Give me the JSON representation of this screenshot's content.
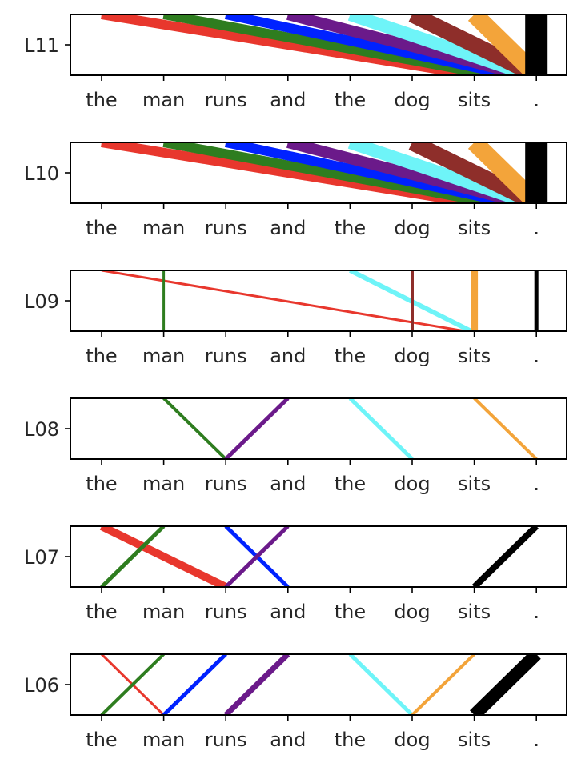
{
  "chart_data": [
    {
      "type": "line",
      "title": "L11",
      "categories": [
        "the",
        "man",
        "runs",
        "and",
        "the",
        "dog",
        "sits",
        "."
      ],
      "links": [
        {
          "from": 0,
          "to": 6.0,
          "w": 12,
          "color": "#e8372d"
        },
        {
          "from": 1,
          "to": 6.3,
          "w": 12,
          "color": "#2e7d1f"
        },
        {
          "from": 2,
          "to": 6.6,
          "w": 12,
          "color": "#0022ff"
        },
        {
          "from": 3,
          "to": 6.8,
          "w": 14,
          "color": "#6b1a8a"
        },
        {
          "from": 4,
          "to": 6.9,
          "w": 16,
          "color": "#6ef4f8"
        },
        {
          "from": 5,
          "to": 7.0,
          "w": 20,
          "color": "#8e2e2a"
        },
        {
          "from": 6,
          "to": 7.0,
          "w": 22,
          "color": "#f3a43a"
        },
        {
          "from": 7,
          "to": 7.0,
          "w": 28,
          "color": "#000000"
        }
      ]
    },
    {
      "type": "line",
      "title": "L10",
      "categories": [
        "the",
        "man",
        "runs",
        "and",
        "the",
        "dog",
        "sits",
        "."
      ],
      "links": [
        {
          "from": 0,
          "to": 6.0,
          "w": 12,
          "color": "#e8372d"
        },
        {
          "from": 1,
          "to": 6.3,
          "w": 12,
          "color": "#2e7d1f"
        },
        {
          "from": 2,
          "to": 6.6,
          "w": 12,
          "color": "#0022ff"
        },
        {
          "from": 3,
          "to": 6.8,
          "w": 14,
          "color": "#6b1a8a"
        },
        {
          "from": 4,
          "to": 6.9,
          "w": 16,
          "color": "#6ef4f8"
        },
        {
          "from": 5,
          "to": 7.0,
          "w": 20,
          "color": "#8e2e2a"
        },
        {
          "from": 6,
          "to": 7.0,
          "w": 22,
          "color": "#f3a43a"
        },
        {
          "from": 7,
          "to": 7.0,
          "w": 28,
          "color": "#000000"
        }
      ]
    },
    {
      "type": "line",
      "title": "L09",
      "categories": [
        "the",
        "man",
        "runs",
        "and",
        "the",
        "dog",
        "sits",
        "."
      ],
      "links": [
        {
          "from": 0,
          "to": 5.85,
          "w": 3,
          "color": "#e8372d"
        },
        {
          "from": 1,
          "to": 1,
          "w": 3,
          "color": "#2e7d1f"
        },
        {
          "from": 4,
          "to": 5.95,
          "w": 6,
          "color": "#6ef4f8"
        },
        {
          "from": 5,
          "to": 5,
          "w": 4,
          "color": "#8e2e2a"
        },
        {
          "from": 6,
          "to": 6,
          "w": 9,
          "color": "#f3a43a"
        },
        {
          "from": 7,
          "to": 7,
          "w": 5,
          "color": "#000000"
        }
      ]
    },
    {
      "type": "line",
      "title": "L08",
      "categories": [
        "the",
        "man",
        "runs",
        "and",
        "the",
        "dog",
        "sits",
        "."
      ],
      "links": [
        {
          "from": 1,
          "to": 2,
          "w": 4,
          "color": "#2e7d1f"
        },
        {
          "from": 3,
          "to": 2,
          "w": 5,
          "color": "#6b1a8a"
        },
        {
          "from": 4,
          "to": 5,
          "w": 5,
          "color": "#6ef4f8"
        },
        {
          "from": 6,
          "to": 7,
          "w": 4,
          "color": "#f3a43a"
        }
      ]
    },
    {
      "type": "line",
      "title": "L07",
      "categories": [
        "the",
        "man",
        "runs",
        "and",
        "the",
        "dog",
        "sits",
        "."
      ],
      "links": [
        {
          "from": 0,
          "to": 2,
          "w": 10,
          "color": "#e8372d"
        },
        {
          "from": 1,
          "to": 0,
          "w": 5,
          "color": "#2e7d1f"
        },
        {
          "from": 2,
          "to": 3,
          "w": 5,
          "color": "#0022ff"
        },
        {
          "from": 3,
          "to": 2,
          "w": 5,
          "color": "#6b1a8a"
        },
        {
          "from": 7,
          "to": 6,
          "w": 8,
          "color": "#000000"
        }
      ]
    },
    {
      "type": "line",
      "title": "L06",
      "categories": [
        "the",
        "man",
        "runs",
        "and",
        "the",
        "dog",
        "sits",
        "."
      ],
      "links": [
        {
          "from": 0,
          "to": 1,
          "w": 3,
          "color": "#e8372d"
        },
        {
          "from": 1,
          "to": 0,
          "w": 4,
          "color": "#2e7d1f"
        },
        {
          "from": 2,
          "to": 1,
          "w": 5,
          "color": "#0022ff"
        },
        {
          "from": 3,
          "to": 2,
          "w": 7,
          "color": "#6b1a8a"
        },
        {
          "from": 4,
          "to": 5,
          "w": 5,
          "color": "#6ef4f8"
        },
        {
          "from": 6,
          "to": 5,
          "w": 4,
          "color": "#f3a43a"
        },
        {
          "from": 7,
          "to": 6,
          "w": 16,
          "color": "#000000"
        }
      ]
    }
  ]
}
